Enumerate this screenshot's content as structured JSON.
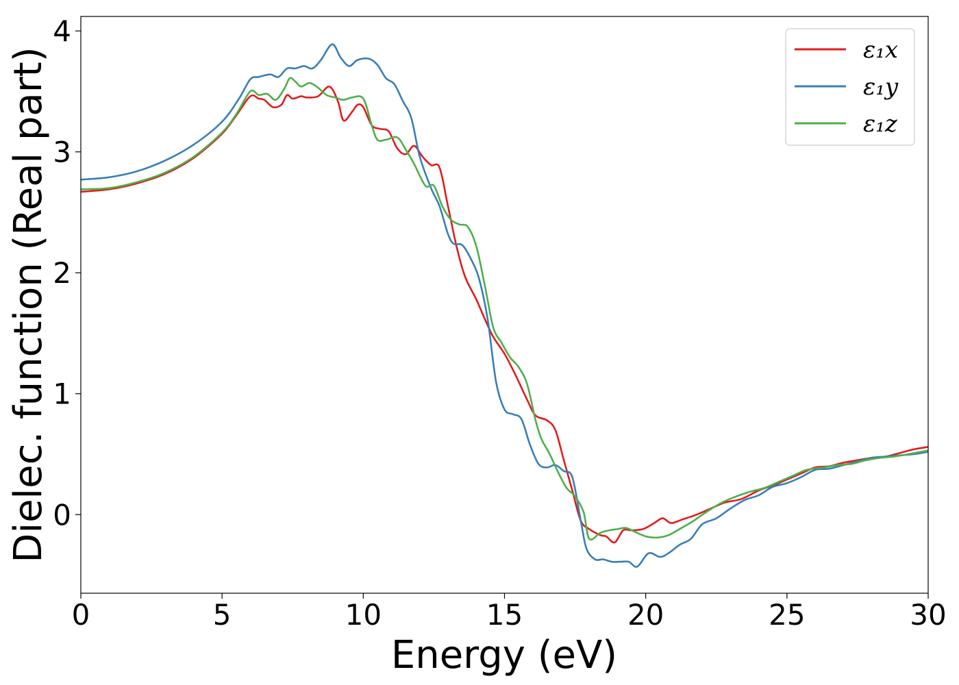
{
  "chart_data": {
    "type": "line",
    "title": "",
    "xlabel": "Energy (eV)",
    "ylabel": "Dielec. function (Real part)",
    "xlim": [
      0,
      30
    ],
    "ylim": [
      -0.65,
      4.12
    ],
    "x_ticks": [
      "0",
      "5",
      "10",
      "15",
      "20",
      "25",
      "30"
    ],
    "y_ticks": [
      "0",
      "1",
      "2",
      "3",
      "4"
    ],
    "grid": false,
    "legend_position": "top-right",
    "series": [
      {
        "name": "ε₁x",
        "color": "#e41a1c",
        "points": [
          [
            0,
            2.67
          ],
          [
            1,
            2.69
          ],
          [
            2,
            2.74
          ],
          [
            3,
            2.82
          ],
          [
            4,
            2.95
          ],
          [
            5,
            3.15
          ],
          [
            5.5,
            3.3
          ],
          [
            6,
            3.46
          ],
          [
            6.3,
            3.44
          ],
          [
            6.5,
            3.43
          ],
          [
            6.8,
            3.37
          ],
          [
            7.1,
            3.39
          ],
          [
            7.3,
            3.47
          ],
          [
            7.5,
            3.44
          ],
          [
            7.8,
            3.46
          ],
          [
            8.0,
            3.45
          ],
          [
            8.4,
            3.46
          ],
          [
            8.8,
            3.54
          ],
          [
            9.1,
            3.42
          ],
          [
            9.3,
            3.26
          ],
          [
            9.6,
            3.33
          ],
          [
            9.8,
            3.39
          ],
          [
            10.0,
            3.37
          ],
          [
            10.3,
            3.22
          ],
          [
            10.6,
            3.19
          ],
          [
            10.9,
            3.17
          ],
          [
            11.2,
            3.03
          ],
          [
            11.5,
            2.98
          ],
          [
            11.8,
            3.05
          ],
          [
            12.1,
            2.96
          ],
          [
            12.4,
            2.89
          ],
          [
            12.7,
            2.87
          ],
          [
            13.0,
            2.55
          ],
          [
            13.3,
            2.22
          ],
          [
            13.6,
            1.97
          ],
          [
            14.0,
            1.78
          ],
          [
            14.3,
            1.62
          ],
          [
            14.6,
            1.47
          ],
          [
            15.0,
            1.33
          ],
          [
            15.4,
            1.15
          ],
          [
            15.8,
            0.95
          ],
          [
            16.1,
            0.82
          ],
          [
            16.5,
            0.78
          ],
          [
            16.8,
            0.7
          ],
          [
            17.1,
            0.45
          ],
          [
            17.4,
            0.2
          ],
          [
            17.7,
            -0.05
          ],
          [
            18.0,
            -0.12
          ],
          [
            18.4,
            -0.17
          ],
          [
            18.6,
            -0.18
          ],
          [
            18.9,
            -0.23
          ],
          [
            19.2,
            -0.13
          ],
          [
            19.5,
            -0.13
          ],
          [
            19.9,
            -0.12
          ],
          [
            20.3,
            -0.07
          ],
          [
            20.6,
            -0.03
          ],
          [
            20.9,
            -0.07
          ],
          [
            21.3,
            -0.04
          ],
          [
            21.8,
            0.0
          ],
          [
            22.3,
            0.05
          ],
          [
            22.8,
            0.1
          ],
          [
            23.4,
            0.13
          ],
          [
            24.0,
            0.2
          ],
          [
            24.5,
            0.24
          ],
          [
            25.0,
            0.29
          ],
          [
            25.5,
            0.34
          ],
          [
            26.0,
            0.39
          ],
          [
            26.5,
            0.4
          ],
          [
            27.0,
            0.43
          ],
          [
            27.5,
            0.45
          ],
          [
            28.0,
            0.47
          ],
          [
            28.5,
            0.48
          ],
          [
            29.0,
            0.51
          ],
          [
            29.5,
            0.54
          ],
          [
            30.0,
            0.56
          ]
        ]
      },
      {
        "name": "ε₁y",
        "color": "#377eb8",
        "points": [
          [
            0,
            2.77
          ],
          [
            1,
            2.79
          ],
          [
            2,
            2.84
          ],
          [
            3,
            2.93
          ],
          [
            4,
            3.06
          ],
          [
            5,
            3.25
          ],
          [
            5.6,
            3.44
          ],
          [
            6.0,
            3.6
          ],
          [
            6.3,
            3.62
          ],
          [
            6.7,
            3.64
          ],
          [
            7.0,
            3.62
          ],
          [
            7.3,
            3.69
          ],
          [
            7.6,
            3.69
          ],
          [
            7.9,
            3.71
          ],
          [
            8.2,
            3.69
          ],
          [
            8.5,
            3.76
          ],
          [
            8.9,
            3.89
          ],
          [
            9.2,
            3.78
          ],
          [
            9.5,
            3.71
          ],
          [
            9.8,
            3.76
          ],
          [
            10.2,
            3.77
          ],
          [
            10.5,
            3.72
          ],
          [
            10.8,
            3.61
          ],
          [
            11.1,
            3.56
          ],
          [
            11.4,
            3.42
          ],
          [
            11.7,
            3.28
          ],
          [
            12.0,
            2.96
          ],
          [
            12.4,
            2.7
          ],
          [
            12.7,
            2.55
          ],
          [
            13.0,
            2.32
          ],
          [
            13.2,
            2.24
          ],
          [
            13.5,
            2.23
          ],
          [
            13.8,
            2.12
          ],
          [
            14.1,
            1.95
          ],
          [
            14.4,
            1.62
          ],
          [
            14.7,
            1.1
          ],
          [
            15.0,
            0.87
          ],
          [
            15.3,
            0.83
          ],
          [
            15.6,
            0.79
          ],
          [
            15.9,
            0.58
          ],
          [
            16.2,
            0.42
          ],
          [
            16.5,
            0.39
          ],
          [
            16.8,
            0.41
          ],
          [
            17.1,
            0.36
          ],
          [
            17.4,
            0.31
          ],
          [
            17.7,
            -0.05
          ],
          [
            17.9,
            -0.28
          ],
          [
            18.2,
            -0.37
          ],
          [
            18.5,
            -0.37
          ],
          [
            18.8,
            -0.39
          ],
          [
            19.1,
            -0.39
          ],
          [
            19.4,
            -0.39
          ],
          [
            19.7,
            -0.43
          ],
          [
            20.1,
            -0.32
          ],
          [
            20.5,
            -0.35
          ],
          [
            20.8,
            -0.32
          ],
          [
            21.2,
            -0.25
          ],
          [
            21.6,
            -0.2
          ],
          [
            22.0,
            -0.08
          ],
          [
            22.5,
            -0.03
          ],
          [
            23.0,
            0.05
          ],
          [
            23.5,
            0.12
          ],
          [
            24.0,
            0.16
          ],
          [
            24.5,
            0.23
          ],
          [
            25.0,
            0.26
          ],
          [
            25.5,
            0.31
          ],
          [
            26.0,
            0.37
          ],
          [
            26.5,
            0.38
          ],
          [
            27.0,
            0.41
          ],
          [
            27.5,
            0.44
          ],
          [
            28.0,
            0.47
          ],
          [
            28.5,
            0.48
          ],
          [
            29.0,
            0.49
          ],
          [
            29.5,
            0.5
          ],
          [
            30.0,
            0.52
          ]
        ]
      },
      {
        "name": "ε₁z",
        "color": "#4daf4a",
        "points": [
          [
            0,
            2.69
          ],
          [
            1,
            2.7
          ],
          [
            2,
            2.75
          ],
          [
            3,
            2.83
          ],
          [
            4,
            2.96
          ],
          [
            5,
            3.16
          ],
          [
            5.5,
            3.31
          ],
          [
            6.0,
            3.5
          ],
          [
            6.3,
            3.47
          ],
          [
            6.6,
            3.48
          ],
          [
            6.9,
            3.43
          ],
          [
            7.2,
            3.52
          ],
          [
            7.4,
            3.61
          ],
          [
            7.6,
            3.58
          ],
          [
            7.8,
            3.54
          ],
          [
            8.1,
            3.57
          ],
          [
            8.4,
            3.53
          ],
          [
            8.7,
            3.47
          ],
          [
            9.0,
            3.45
          ],
          [
            9.3,
            3.43
          ],
          [
            9.6,
            3.45
          ],
          [
            10.0,
            3.44
          ],
          [
            10.3,
            3.22
          ],
          [
            10.5,
            3.1
          ],
          [
            10.8,
            3.1
          ],
          [
            11.2,
            3.12
          ],
          [
            11.5,
            3.02
          ],
          [
            11.8,
            2.9
          ],
          [
            12.2,
            2.72
          ],
          [
            12.5,
            2.72
          ],
          [
            12.8,
            2.55
          ],
          [
            13.1,
            2.44
          ],
          [
            13.4,
            2.4
          ],
          [
            13.7,
            2.38
          ],
          [
            14.0,
            2.22
          ],
          [
            14.3,
            1.9
          ],
          [
            14.6,
            1.55
          ],
          [
            14.9,
            1.42
          ],
          [
            15.2,
            1.3
          ],
          [
            15.5,
            1.22
          ],
          [
            15.8,
            1.08
          ],
          [
            16.1,
            0.78
          ],
          [
            16.3,
            0.63
          ],
          [
            16.6,
            0.5
          ],
          [
            16.9,
            0.35
          ],
          [
            17.2,
            0.22
          ],
          [
            17.5,
            0.15
          ],
          [
            17.8,
            0.02
          ],
          [
            18.0,
            -0.2
          ],
          [
            18.4,
            -0.15
          ],
          [
            18.7,
            -0.13
          ],
          [
            19.0,
            -0.12
          ],
          [
            19.3,
            -0.11
          ],
          [
            19.6,
            -0.14
          ],
          [
            20.0,
            -0.18
          ],
          [
            20.4,
            -0.19
          ],
          [
            20.8,
            -0.17
          ],
          [
            21.2,
            -0.12
          ],
          [
            21.7,
            -0.05
          ],
          [
            22.2,
            0.03
          ],
          [
            22.7,
            0.1
          ],
          [
            23.2,
            0.15
          ],
          [
            23.7,
            0.19
          ],
          [
            24.2,
            0.22
          ],
          [
            24.7,
            0.27
          ],
          [
            25.2,
            0.32
          ],
          [
            25.7,
            0.37
          ],
          [
            26.3,
            0.39
          ],
          [
            26.8,
            0.41
          ],
          [
            27.3,
            0.42
          ],
          [
            27.8,
            0.45
          ],
          [
            28.3,
            0.47
          ],
          [
            28.8,
            0.48
          ],
          [
            29.3,
            0.5
          ],
          [
            30.0,
            0.53
          ]
        ]
      }
    ]
  }
}
